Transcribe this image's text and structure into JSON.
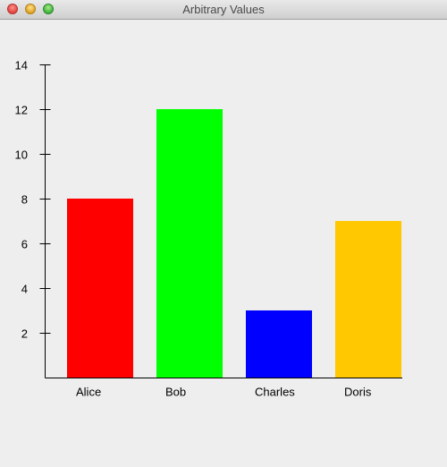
{
  "window": {
    "title": "Arbitrary Values"
  },
  "chart_data": {
    "type": "bar",
    "categories": [
      "Alice",
      "Bob",
      "Charles",
      "Doris"
    ],
    "values": [
      8,
      12,
      3,
      7
    ],
    "colors": [
      "#ff0000",
      "#00ff00",
      "#0000ff",
      "#ffc800"
    ],
    "yticks": [
      2,
      4,
      6,
      8,
      10,
      12,
      14
    ],
    "ylim": [
      0,
      14
    ],
    "grid": false,
    "title": "",
    "xlabel": "",
    "ylabel": ""
  }
}
